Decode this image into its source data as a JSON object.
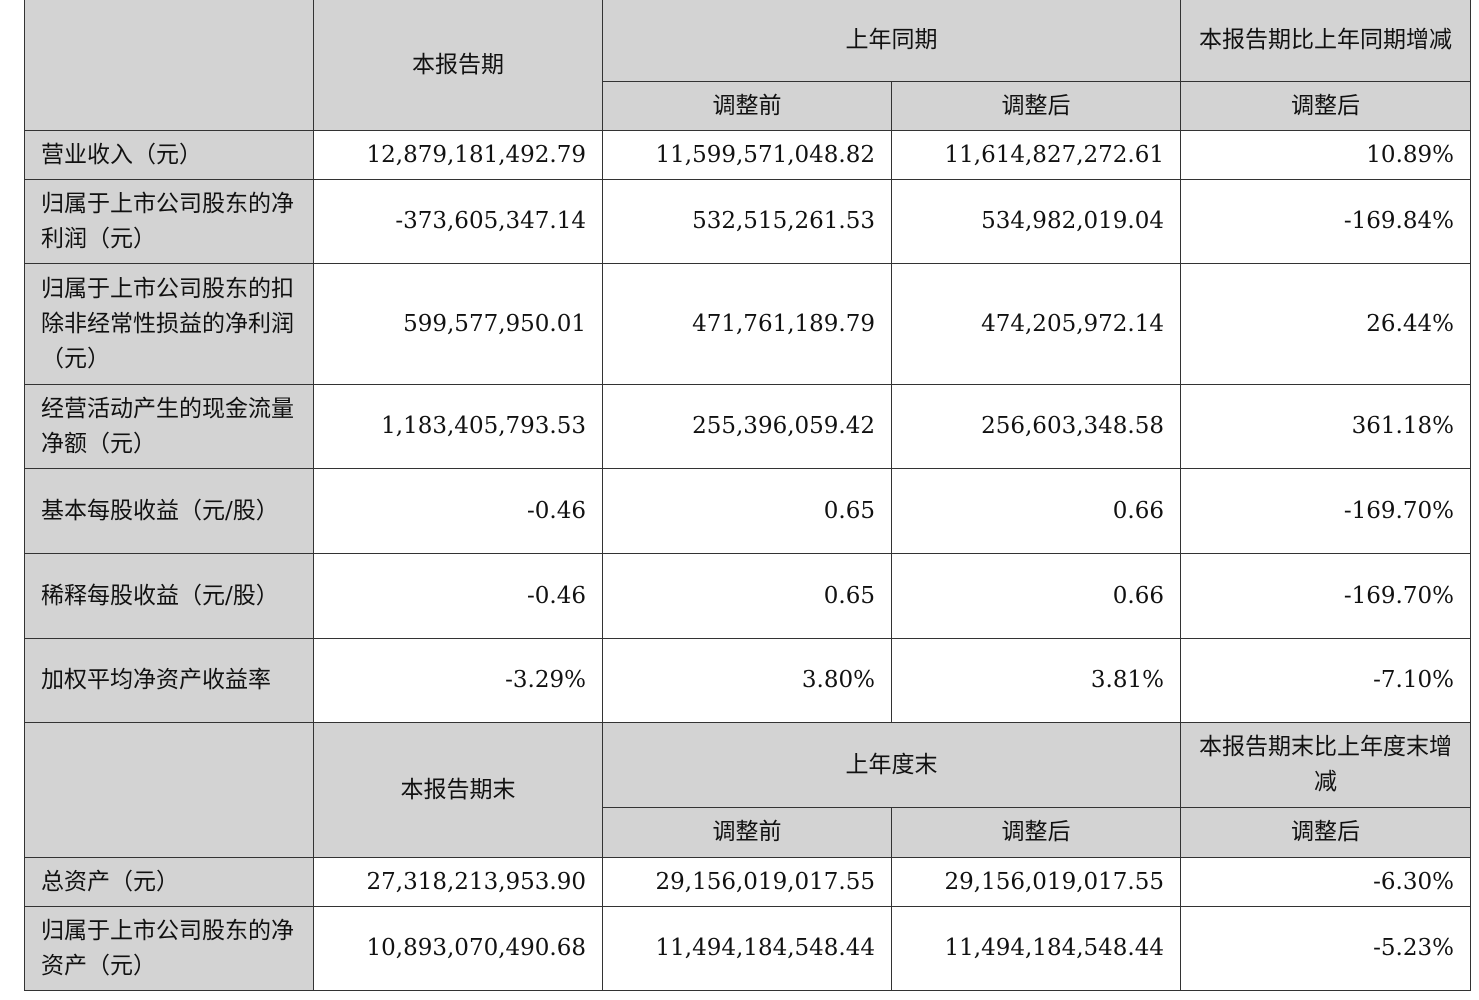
{
  "section1": {
    "header": {
      "current": "本报告期",
      "prior": "上年同期",
      "change": "本报告期比上年同期增减",
      "before": "调整前",
      "after": "调整后",
      "change_after": "调整后"
    },
    "rows": [
      {
        "label": "营业收入（元）",
        "v": [
          "12,879,181,492.79",
          "11,599,571,048.82",
          "11,614,827,272.61",
          "10.89%"
        ]
      },
      {
        "label": "归属于上市公司股东的净利润（元）",
        "v": [
          "-373,605,347.14",
          "532,515,261.53",
          "534,982,019.04",
          "-169.84%"
        ]
      },
      {
        "label": "归属于上市公司股东的扣除非经常性损益的净利润（元）",
        "v": [
          "599,577,950.01",
          "471,761,189.79",
          "474,205,972.14",
          "26.44%"
        ]
      },
      {
        "label": "经营活动产生的现金流量净额（元）",
        "v": [
          "1,183,405,793.53",
          "255,396,059.42",
          "256,603,348.58",
          "361.18%"
        ]
      },
      {
        "label": "基本每股收益（元/股）",
        "v": [
          "-0.46",
          "0.65",
          "0.66",
          "-169.70%"
        ]
      },
      {
        "label": "稀释每股收益（元/股）",
        "v": [
          "-0.46",
          "0.65",
          "0.66",
          "-169.70%"
        ]
      },
      {
        "label": "加权平均净资产收益率",
        "v": [
          "-3.29%",
          "3.80%",
          "3.81%",
          "-7.10%"
        ]
      }
    ]
  },
  "section2": {
    "header": {
      "current": "本报告期末",
      "prior": "上年度末",
      "change": "本报告期末比上年度末增减",
      "before": "调整前",
      "after": "调整后",
      "change_after": "调整后"
    },
    "rows": [
      {
        "label": "总资产（元）",
        "v": [
          "27,318,213,953.90",
          "29,156,019,017.55",
          "29,156,019,017.55",
          "-6.30%"
        ]
      },
      {
        "label": "归属于上市公司股东的净资产（元）",
        "v": [
          "10,893,070,490.68",
          "11,494,184,548.44",
          "11,494,184,548.44",
          "-5.23%"
        ]
      }
    ]
  }
}
